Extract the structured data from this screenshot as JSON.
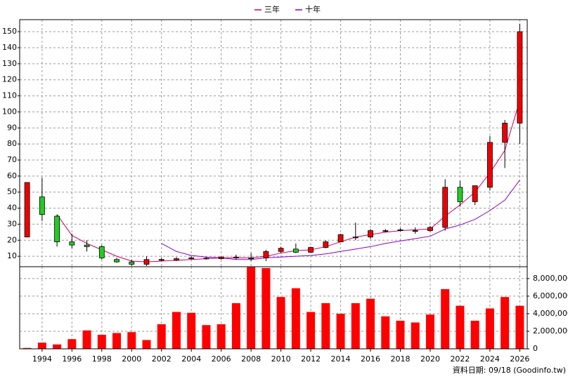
{
  "chart_data": [
    {
      "type": "candlestick",
      "x": [
        1993,
        1994,
        1995,
        1996,
        1997,
        1998,
        1999,
        2000,
        2001,
        2002,
        2003,
        2004,
        2005,
        2006,
        2007,
        2008,
        2009,
        2010,
        2011,
        2012,
        2013,
        2014,
        2015,
        2016,
        2017,
        2018,
        2019,
        2020,
        2021,
        2022,
        2023,
        2024,
        2025,
        2026
      ],
      "open": [
        22,
        47,
        35,
        19,
        17,
        16,
        8,
        6.5,
        5,
        7.5,
        7.5,
        8.5,
        8.5,
        8.5,
        9,
        9,
        9,
        13,
        14.5,
        12.5,
        15.5,
        19,
        21.5,
        22,
        25.5,
        26,
        25.5,
        26,
        28,
        53,
        44,
        53,
        81,
        93
      ],
      "high": [
        56,
        59,
        36,
        24,
        20,
        17,
        9,
        8,
        10,
        9,
        9.5,
        10,
        9.5,
        10,
        11,
        12,
        14,
        16,
        18,
        16,
        20,
        24,
        31,
        27,
        27,
        27.5,
        28,
        29,
        58,
        57,
        54,
        85,
        95,
        155
      ],
      "low": [
        22,
        32,
        16,
        15,
        13,
        8,
        6,
        4,
        4,
        7,
        7,
        8,
        8,
        8,
        8,
        7,
        7,
        12,
        12,
        12,
        15,
        19,
        20,
        21,
        25,
        25.5,
        24,
        25,
        26,
        41,
        42,
        51,
        65,
        80
      ],
      "close": [
        56,
        36,
        19,
        17,
        16,
        9,
        6.5,
        5,
        8,
        8,
        8.5,
        9,
        8.8,
        9.5,
        9.5,
        8.5,
        13,
        15,
        12.5,
        15.5,
        19,
        23.5,
        22,
        26,
        26,
        26.5,
        26,
        28,
        53,
        44,
        54,
        81,
        93,
        150
      ],
      "up_color": "#ee0000",
      "down_color": "#22cc22",
      "series": [
        {
          "name": "三年",
          "color": "#cc0066",
          "values": [
            null,
            null,
            36,
            23,
            18,
            14,
            10,
            7,
            6.5,
            7,
            7.5,
            8,
            8.5,
            9,
            9,
            9,
            10,
            12,
            13.5,
            14,
            16,
            19,
            22,
            23.5,
            25,
            26,
            26.5,
            27,
            35,
            42,
            50,
            62,
            76,
            107
          ]
        },
        {
          "name": "十年",
          "color": "#8800cc",
          "values": [
            null,
            null,
            null,
            null,
            null,
            null,
            null,
            null,
            null,
            18,
            13,
            10.5,
            9.5,
            9,
            8,
            8,
            9,
            9.5,
            10,
            10.5,
            11.5,
            13,
            14.5,
            16,
            18,
            19.5,
            21,
            22.5,
            27,
            29.5,
            33,
            38.5,
            45,
            57.5
          ]
        }
      ],
      "ylim": [
        3.5,
        157.5
      ],
      "yticks": [
        10,
        20,
        30,
        40,
        50,
        60,
        70,
        80,
        90,
        100,
        110,
        120,
        130,
        140,
        150
      ],
      "grid": true
    },
    {
      "type": "bar",
      "x": [
        1993,
        1994,
        1995,
        1996,
        1997,
        1998,
        1999,
        2000,
        2001,
        2002,
        2003,
        2004,
        2005,
        2006,
        2007,
        2008,
        2009,
        2010,
        2011,
        2012,
        2013,
        2014,
        2015,
        2016,
        2017,
        2018,
        2019,
        2020,
        2021,
        2022,
        2023,
        2024,
        2025,
        2026
      ],
      "values": [
        100000,
        700000,
        500000,
        1100000,
        2100000,
        1600000,
        1800000,
        1900000,
        1000000,
        2800000,
        4200000,
        4100000,
        2700000,
        2800000,
        5200000,
        9300000,
        9200000,
        5900000,
        6900000,
        4200000,
        5200000,
        4000000,
        5200000,
        5700000,
        3700000,
        3200000,
        3000000,
        3900000,
        6800000,
        4900000,
        3200000,
        4600000,
        5900000,
        4900000
      ],
      "color": "#ff0000",
      "xlim": [
        1992.5,
        2026.5
      ],
      "xticks": [
        1994,
        1996,
        1998,
        2000,
        2002,
        2004,
        2006,
        2008,
        2010,
        2012,
        2014,
        2016,
        2018,
        2020,
        2022,
        2024,
        2026
      ],
      "ylim": [
        0,
        9350000
      ],
      "yticks": [
        0,
        {
          "value": 2000000,
          "label": "2,000,000"
        },
        {
          "value": 4000000,
          "label": "4,000,000"
        },
        {
          "value": 6000000,
          "label": "6,000,000"
        },
        {
          "value": 8000000,
          "label": "8,000,000"
        }
      ],
      "grid": true
    }
  ],
  "footer": "資料日期: 09/18 (Goodinfo.tw)"
}
